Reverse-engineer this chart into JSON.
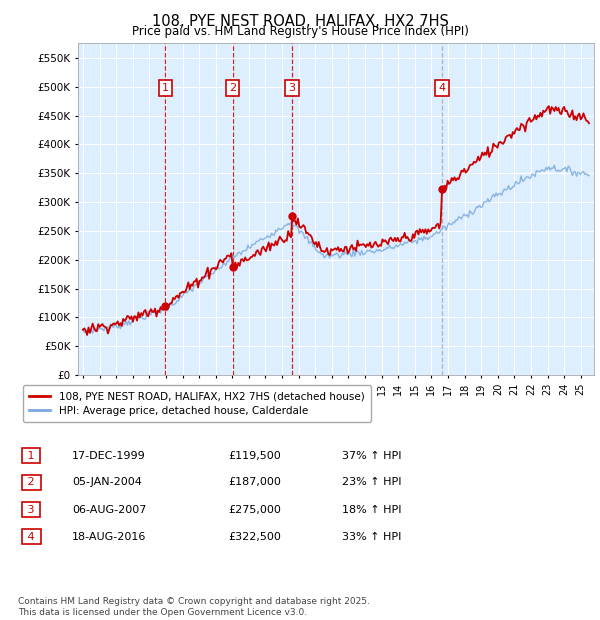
{
  "title": "108, PYE NEST ROAD, HALIFAX, HX2 7HS",
  "subtitle": "Price paid vs. HM Land Registry's House Price Index (HPI)",
  "ylim": [
    0,
    575000
  ],
  "xlim_start": 1994.7,
  "xlim_end": 2025.8,
  "legend_line1": "108, PYE NEST ROAD, HALIFAX, HX2 7HS (detached house)",
  "legend_line2": "HPI: Average price, detached house, Calderdale",
  "transactions": [
    {
      "num": 1,
      "date": "17-DEC-1999",
      "price": 119500,
      "hpi_diff": "37% ↑ HPI",
      "year": 1999.96
    },
    {
      "num": 2,
      "date": "05-JAN-2004",
      "price": 187000,
      "hpi_diff": "23% ↑ HPI",
      "year": 2004.02
    },
    {
      "num": 3,
      "date": "06-AUG-2007",
      "price": 275000,
      "hpi_diff": "18% ↑ HPI",
      "year": 2007.6
    },
    {
      "num": 4,
      "date": "18-AUG-2016",
      "price": 322500,
      "hpi_diff": "33% ↑ HPI",
      "year": 2016.63
    }
  ],
  "footnote": "Contains HM Land Registry data © Crown copyright and database right 2025.\nThis data is licensed under the Open Government Licence v3.0.",
  "line_color_red": "#cc0000",
  "line_color_blue": "#7aaadd",
  "bg_color": "#ddeeff",
  "grid_color": "#ffffff",
  "box_color": "#cc0000",
  "vline_colors": [
    "#cc0000",
    "#cc0000",
    "#cc0000",
    "#aaaaaa"
  ],
  "ytick_labels": [
    "£0",
    "£50K",
    "£100K",
    "£150K",
    "£200K",
    "£250K",
    "£300K",
    "£350K",
    "£400K",
    "£450K",
    "£500K",
    "£550K"
  ],
  "ytick_vals": [
    0,
    50000,
    100000,
    150000,
    200000,
    250000,
    300000,
    350000,
    400000,
    450000,
    500000,
    550000
  ]
}
